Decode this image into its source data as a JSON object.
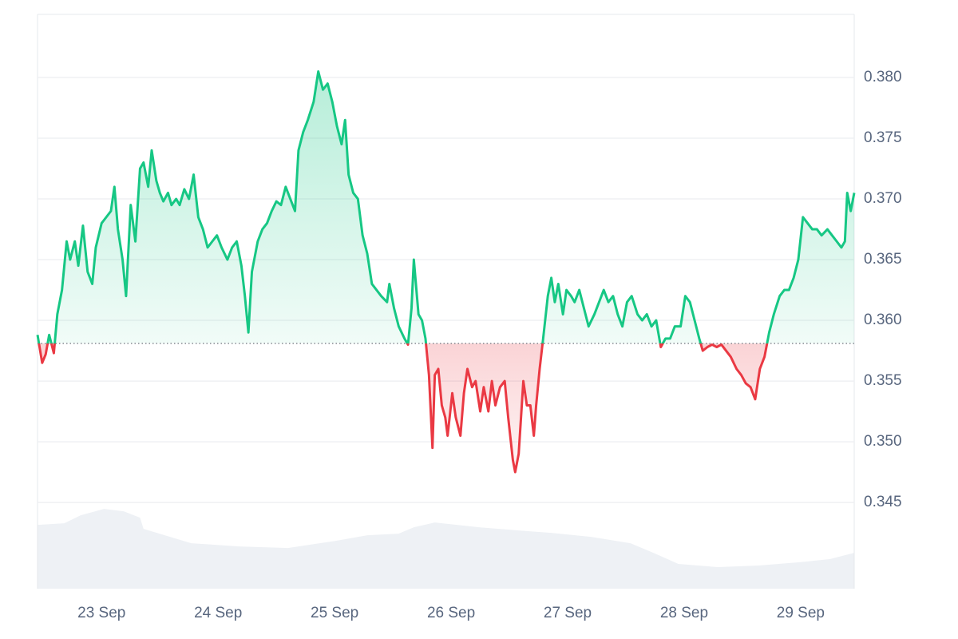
{
  "chart_data": {
    "type": "line",
    "x": [
      22.45,
      22.49,
      22.52,
      22.55,
      22.59,
      22.62,
      22.66,
      22.7,
      22.73,
      22.77,
      22.8,
      22.84,
      22.88,
      22.92,
      22.95,
      23.0,
      23.04,
      23.08,
      23.11,
      23.14,
      23.18,
      23.21,
      23.25,
      23.29,
      23.33,
      23.36,
      23.4,
      23.43,
      23.47,
      23.5,
      23.53,
      23.57,
      23.6,
      23.64,
      23.67,
      23.71,
      23.75,
      23.79,
      23.83,
      23.87,
      23.91,
      23.95,
      23.99,
      24.03,
      24.08,
      24.12,
      24.16,
      24.2,
      24.23,
      24.26,
      24.29,
      24.34,
      24.38,
      24.42,
      24.46,
      24.5,
      24.54,
      24.58,
      24.62,
      24.66,
      24.69,
      24.73,
      24.77,
      24.82,
      24.86,
      24.9,
      24.94,
      24.98,
      25.02,
      25.06,
      25.09,
      25.12,
      25.16,
      25.2,
      25.24,
      25.28,
      25.32,
      25.36,
      25.4,
      25.45,
      25.47,
      25.51,
      25.55,
      25.6,
      25.63,
      25.66,
      25.68,
      25.72,
      25.75,
      25.78,
      25.81,
      25.84,
      25.86,
      25.89,
      25.92,
      25.95,
      25.97,
      26.01,
      26.04,
      26.08,
      26.11,
      26.14,
      26.18,
      26.21,
      26.25,
      26.28,
      26.32,
      26.35,
      26.38,
      26.42,
      26.46,
      26.49,
      26.53,
      26.55,
      26.58,
      26.62,
      26.65,
      26.68,
      26.71,
      26.73,
      26.76,
      26.79,
      26.83,
      26.86,
      26.89,
      26.92,
      26.96,
      26.99,
      27.03,
      27.06,
      27.1,
      27.14,
      27.18,
      27.23,
      27.27,
      27.31,
      27.35,
      27.39,
      27.43,
      27.47,
      27.51,
      27.55,
      27.6,
      27.64,
      27.68,
      27.72,
      27.76,
      27.8,
      27.84,
      27.88,
      27.92,
      27.97,
      28.01,
      28.05,
      28.09,
      28.13,
      28.16,
      28.2,
      28.24,
      28.28,
      28.32,
      28.36,
      28.4,
      28.45,
      28.49,
      28.53,
      28.57,
      28.61,
      28.65,
      28.69,
      28.73,
      28.77,
      28.82,
      28.86,
      28.9,
      28.94,
      28.98,
      29.02,
      29.06,
      29.1,
      29.14,
      29.18,
      29.23,
      29.27,
      29.31,
      29.35,
      29.38,
      29.4,
      29.43,
      29.46
    ],
    "values": [
      0.3588,
      0.3565,
      0.3572,
      0.3588,
      0.3573,
      0.3605,
      0.3625,
      0.3665,
      0.365,
      0.3665,
      0.3645,
      0.3678,
      0.364,
      0.363,
      0.366,
      0.368,
      0.3685,
      0.369,
      0.371,
      0.3675,
      0.365,
      0.362,
      0.3695,
      0.3665,
      0.3725,
      0.373,
      0.371,
      0.374,
      0.3715,
      0.3705,
      0.3698,
      0.3705,
      0.3695,
      0.37,
      0.3695,
      0.3708,
      0.37,
      0.372,
      0.3685,
      0.3675,
      0.366,
      0.3665,
      0.367,
      0.366,
      0.365,
      0.366,
      0.3665,
      0.3645,
      0.362,
      0.359,
      0.364,
      0.3665,
      0.3675,
      0.368,
      0.369,
      0.3698,
      0.3695,
      0.371,
      0.37,
      0.369,
      0.374,
      0.3755,
      0.3765,
      0.378,
      0.3805,
      0.379,
      0.3795,
      0.378,
      0.376,
      0.3745,
      0.3765,
      0.372,
      0.3705,
      0.37,
      0.367,
      0.3655,
      0.363,
      0.3625,
      0.362,
      0.3615,
      0.363,
      0.361,
      0.3595,
      0.3585,
      0.358,
      0.361,
      0.365,
      0.3605,
      0.36,
      0.3585,
      0.3555,
      0.3495,
      0.3555,
      0.356,
      0.353,
      0.352,
      0.3505,
      0.354,
      0.352,
      0.3505,
      0.354,
      0.356,
      0.3545,
      0.355,
      0.3525,
      0.3545,
      0.3525,
      0.355,
      0.353,
      0.3545,
      0.355,
      0.352,
      0.3485,
      0.3475,
      0.349,
      0.355,
      0.353,
      0.353,
      0.3505,
      0.353,
      0.356,
      0.3585,
      0.362,
      0.3635,
      0.3615,
      0.363,
      0.3605,
      0.3625,
      0.362,
      0.3615,
      0.3625,
      0.361,
      0.3595,
      0.3605,
      0.3615,
      0.3625,
      0.3615,
      0.362,
      0.3605,
      0.3595,
      0.3615,
      0.362,
      0.3605,
      0.36,
      0.3605,
      0.3595,
      0.36,
      0.3578,
      0.3585,
      0.3585,
      0.3595,
      0.3595,
      0.362,
      0.3615,
      0.36,
      0.3585,
      0.3575,
      0.3578,
      0.358,
      0.3578,
      0.358,
      0.3575,
      0.357,
      0.356,
      0.3555,
      0.3548,
      0.3545,
      0.3535,
      0.356,
      0.357,
      0.359,
      0.3605,
      0.362,
      0.3625,
      0.3625,
      0.3635,
      0.365,
      0.3685,
      0.368,
      0.3675,
      0.3675,
      0.367,
      0.3675,
      0.367,
      0.3665,
      0.366,
      0.3665,
      0.3705,
      0.369,
      0.3705
    ],
    "up_color": "#16c784",
    "down_color": "#ea3943",
    "baseline": 0.3581,
    "xlim": [
      22.45,
      29.46
    ],
    "xticks": [
      {
        "value": 23,
        "label": "23 Sep"
      },
      {
        "value": 24,
        "label": "24 Sep"
      },
      {
        "value": 25,
        "label": "25 Sep"
      },
      {
        "value": 26,
        "label": "26 Sep"
      },
      {
        "value": 27,
        "label": "27 Sep"
      },
      {
        "value": 28,
        "label": "28 Sep"
      },
      {
        "value": 29,
        "label": "29 Sep"
      }
    ],
    "ylim": [
      0.3379,
      0.3852
    ],
    "yticks": [
      0.345,
      {
        "value": 0.35,
        "label": "0.350"
      },
      0.355,
      {
        "value": 0.36,
        "label": "0.360"
      },
      0.365,
      {
        "value": 0.37,
        "label": "0.370"
      },
      0.375,
      {
        "value": 0.38,
        "label": "0.380"
      }
    ],
    "grid": true,
    "y2lim": [
      0,
      720
    ],
    "volume": {
      "axis": "y2",
      "color": "#eef1f5",
      "x": [
        22.45,
        22.68,
        22.82,
        23.02,
        23.19,
        23.33,
        23.36,
        23.77,
        24.18,
        24.6,
        25.01,
        25.28,
        25.55,
        25.68,
        25.86,
        26.24,
        26.58,
        26.86,
        27.2,
        27.54,
        27.75,
        27.95,
        28.29,
        28.64,
        28.98,
        29.25,
        29.46
      ],
      "values": [
        80,
        82,
        92,
        100,
        97,
        89,
        75,
        57,
        53,
        51,
        60,
        67,
        69,
        77,
        83,
        77,
        73,
        70,
        65,
        57,
        44,
        31,
        27,
        29,
        33,
        37,
        45
      ]
    }
  }
}
